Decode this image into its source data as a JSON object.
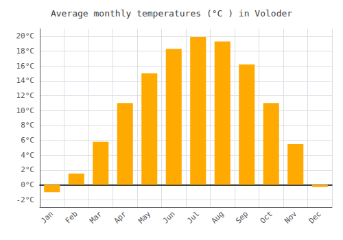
{
  "chart_data": {
    "type": "bar",
    "title": "Average monthly temperatures (°C ) in Voloder",
    "categories": [
      "Jan",
      "Feb",
      "Mar",
      "Apr",
      "May",
      "Jun",
      "Jul",
      "Aug",
      "Sep",
      "Oct",
      "Nov",
      "Dec"
    ],
    "values": [
      -1.0,
      1.5,
      5.8,
      11.0,
      15.0,
      18.3,
      19.9,
      19.3,
      16.2,
      11.0,
      5.5,
      -0.3
    ],
    "color": "#FFAA00",
    "ylim": [
      -3,
      21
    ],
    "yticks": [
      {
        "value": -2,
        "label": "-2°C"
      },
      {
        "value": 0,
        "label": "0°C"
      },
      {
        "value": 2,
        "label": "2°C"
      },
      {
        "value": 4,
        "label": "4°C"
      },
      {
        "value": 6,
        "label": "6°C"
      },
      {
        "value": 8,
        "label": "8°C"
      },
      {
        "value": 10,
        "label": "10°C"
      },
      {
        "value": 12,
        "label": "12°C"
      },
      {
        "value": 14,
        "label": "14°C"
      },
      {
        "value": 16,
        "label": "16°C"
      },
      {
        "value": 18,
        "label": "18°C"
      },
      {
        "value": 20,
        "label": "20°C"
      }
    ],
    "grid": true
  }
}
